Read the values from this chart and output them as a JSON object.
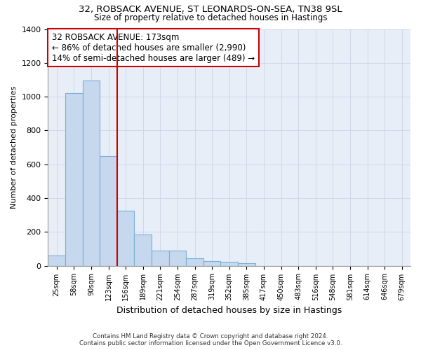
{
  "title1": "32, ROBSACK AVENUE, ST LEONARDS-ON-SEA, TN38 9SL",
  "title2": "Size of property relative to detached houses in Hastings",
  "xlabel": "Distribution of detached houses by size in Hastings",
  "ylabel": "Number of detached properties",
  "footnote": "Contains HM Land Registry data © Crown copyright and database right 2024.\nContains public sector information licensed under the Open Government Licence v3.0.",
  "bin_labels": [
    "25sqm",
    "58sqm",
    "90sqm",
    "123sqm",
    "156sqm",
    "189sqm",
    "221sqm",
    "254sqm",
    "287sqm",
    "319sqm",
    "352sqm",
    "385sqm",
    "417sqm",
    "450sqm",
    "483sqm",
    "516sqm",
    "548sqm",
    "581sqm",
    "614sqm",
    "646sqm",
    "679sqm"
  ],
  "bar_values": [
    60,
    1020,
    1095,
    650,
    325,
    185,
    90,
    90,
    45,
    28,
    25,
    15,
    0,
    0,
    0,
    0,
    0,
    0,
    0,
    0,
    0
  ],
  "bar_color": "#c5d8ee",
  "bar_edgecolor": "#7aafd4",
  "grid_color": "#d0d8e8",
  "bg_color": "#e8eef7",
  "red_line_x": 3.52,
  "annotation_text": "32 ROBSACK AVENUE: 173sqm\n← 86% of detached houses are smaller (2,990)\n14% of semi-detached houses are larger (489) →",
  "annotation_box_color": "#cc0000",
  "ylim": [
    0,
    1400
  ],
  "yticks": [
    0,
    200,
    400,
    600,
    800,
    1000,
    1200,
    1400
  ]
}
